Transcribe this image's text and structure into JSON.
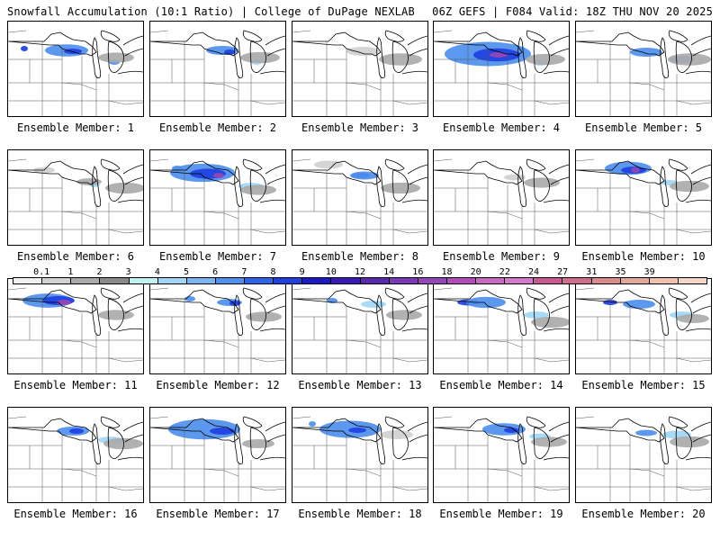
{
  "header": {
    "title_left": "Snowfall Accumulation (10:1 Ratio) | College of DuPage NEXLAB",
    "title_right": "06Z GEFS | F084 Valid: 18Z THU NOV 20 2025"
  },
  "legend": {
    "ticks": [
      "0.1",
      "1",
      "2",
      "3",
      "4",
      "5",
      "6",
      "7",
      "8",
      "9",
      "10",
      "12",
      "14",
      "16",
      "18",
      "20",
      "22",
      "24",
      "27",
      "31",
      "35",
      "39"
    ],
    "colors": [
      "#f0f0f0",
      "#d0d0d0",
      "#aaaaaa",
      "#8a8a8a",
      "#bff3f3",
      "#9fd7f5",
      "#79b6f2",
      "#4f8fee",
      "#2d64ea",
      "#1f3fe0",
      "#1a1ac8",
      "#3a1ab8",
      "#5a2aa8",
      "#7a3ab4",
      "#9646b8",
      "#b24cbc",
      "#c86ac2",
      "#d27ac8",
      "#c85a92",
      "#cf6e8c",
      "#d98c8c",
      "#e4a89a",
      "#eec2ae",
      "#f6d8c8"
    ]
  },
  "panels": [
    {
      "label": "Ensemble Member: 1",
      "snow": [
        [
          18,
          30,
          4,
          "#1f3fe0"
        ],
        [
          65,
          32,
          24,
          "#4f8fee"
        ],
        [
          72,
          33,
          10,
          "#1f3fe0"
        ],
        [
          118,
          45,
          6,
          "#4f8fee"
        ],
        [
          120,
          40,
          20,
          "#aaaaaa"
        ]
      ]
    },
    {
      "label": "Ensemble Member: 2",
      "snow": [
        [
          80,
          32,
          18,
          "#4f8fee"
        ],
        [
          88,
          34,
          6,
          "#1f3fe0"
        ],
        [
          118,
          45,
          6,
          "#9fd7f5"
        ],
        [
          122,
          40,
          22,
          "#aaaaaa"
        ]
      ]
    },
    {
      "label": "Ensemble Member: 3",
      "snow": [
        [
          78,
          33,
          18,
          "#d0d0d0"
        ],
        [
          120,
          42,
          24,
          "#aaaaaa"
        ]
      ]
    },
    {
      "label": "Ensemble Member: 4",
      "snow": [
        [
          60,
          36,
          48,
          "#4f8fee"
        ],
        [
          70,
          37,
          26,
          "#1f3fe0"
        ],
        [
          72,
          37,
          10,
          "#9646b8"
        ],
        [
          118,
          46,
          8,
          "#9fd7f5"
        ],
        [
          124,
          42,
          22,
          "#aaaaaa"
        ]
      ]
    },
    {
      "label": "Ensemble Member: 5",
      "snow": [
        [
          78,
          34,
          18,
          "#4f8fee"
        ],
        [
          118,
          42,
          14,
          "#4f8fee"
        ],
        [
          126,
          42,
          24,
          "#aaaaaa"
        ]
      ]
    },
    {
      "label": "Ensemble Member: 6",
      "snow": [
        [
          40,
          22,
          12,
          "#d0d0d0"
        ],
        [
          96,
          38,
          6,
          "#9fd7f5"
        ],
        [
          90,
          35,
          14,
          "#aaaaaa"
        ],
        [
          130,
          42,
          22,
          "#aaaaaa"
        ]
      ]
    },
    {
      "label": "Ensemble Member: 7",
      "snow": [
        [
          30,
          20,
          6,
          "#4f8fee"
        ],
        [
          58,
          25,
          36,
          "#4f8fee"
        ],
        [
          64,
          26,
          20,
          "#1f3fe0"
        ],
        [
          76,
          28,
          6,
          "#9646b8"
        ],
        [
          112,
          40,
          14,
          "#9fd7f5"
        ],
        [
          120,
          44,
          20,
          "#aaaaaa"
        ]
      ]
    },
    {
      "label": "Ensemble Member: 8",
      "snow": [
        [
          40,
          16,
          16,
          "#d0d0d0"
        ],
        [
          76,
          28,
          10,
          "#1f3fe0"
        ],
        [
          80,
          28,
          16,
          "#4f8fee"
        ],
        [
          120,
          42,
          22,
          "#aaaaaa"
        ]
      ]
    },
    {
      "label": "Ensemble Member: 9",
      "snow": [
        [
          90,
          30,
          12,
          "#d0d0d0"
        ],
        [
          120,
          36,
          20,
          "#aaaaaa"
        ]
      ]
    },
    {
      "label": "Ensemble Member: 10",
      "snow": [
        [
          58,
          20,
          26,
          "#4f8fee"
        ],
        [
          64,
          22,
          14,
          "#1f3fe0"
        ],
        [
          66,
          22,
          5,
          "#9646b8"
        ],
        [
          104,
          36,
          10,
          "#9fd7f5"
        ],
        [
          126,
          40,
          22,
          "#aaaaaa"
        ]
      ]
    },
    {
      "label": "Ensemble Member: 11",
      "snow": [
        [
          44,
          24,
          28,
          "#4f8fee"
        ],
        [
          56,
          24,
          18,
          "#1f3fe0"
        ],
        [
          62,
          26,
          8,
          "#9646b8"
        ],
        [
          120,
          40,
          20,
          "#aaaaaa"
        ]
      ]
    },
    {
      "label": "Ensemble Member: 12",
      "snow": [
        [
          44,
          22,
          6,
          "#4f8fee"
        ],
        [
          88,
          26,
          14,
          "#4f8fee"
        ],
        [
          94,
          27,
          6,
          "#1f3fe0"
        ],
        [
          118,
          42,
          10,
          "#9fd7f5"
        ],
        [
          126,
          42,
          20,
          "#aaaaaa"
        ]
      ]
    },
    {
      "label": "Ensemble Member: 13",
      "snow": [
        [
          44,
          24,
          6,
          "#4f8fee"
        ],
        [
          90,
          28,
          14,
          "#9fd7f5"
        ],
        [
          124,
          40,
          20,
          "#aaaaaa"
        ]
      ]
    },
    {
      "label": "Ensemble Member: 14",
      "snow": [
        [
          38,
          26,
          12,
          "#1f3fe0"
        ],
        [
          58,
          26,
          22,
          "#4f8fee"
        ],
        [
          114,
          40,
          14,
          "#9fd7f5"
        ],
        [
          130,
          48,
          22,
          "#aaaaaa"
        ]
      ]
    },
    {
      "label": "Ensemble Member: 15",
      "snow": [
        [
          38,
          26,
          8,
          "#1f3fe0"
        ],
        [
          70,
          28,
          18,
          "#4f8fee"
        ],
        [
          118,
          40,
          14,
          "#9fd7f5"
        ],
        [
          130,
          44,
          18,
          "#aaaaaa"
        ]
      ]
    },
    {
      "label": "Ensemble Member: 16",
      "snow": [
        [
          72,
          26,
          18,
          "#4f8fee"
        ],
        [
          76,
          26,
          8,
          "#1f3fe0"
        ],
        [
          114,
          36,
          14,
          "#9fd7f5"
        ],
        [
          128,
          40,
          22,
          "#aaaaaa"
        ]
      ]
    },
    {
      "label": "Ensemble Member: 17",
      "snow": [
        [
          28,
          22,
          6,
          "#4f8fee"
        ],
        [
          60,
          24,
          40,
          "#4f8fee"
        ],
        [
          80,
          26,
          14,
          "#1f3fe0"
        ],
        [
          120,
          40,
          18,
          "#aaaaaa"
        ]
      ]
    },
    {
      "label": "Ensemble Member: 18",
      "snow": [
        [
          22,
          18,
          4,
          "#4f8fee"
        ],
        [
          64,
          24,
          34,
          "#4f8fee"
        ],
        [
          72,
          25,
          10,
          "#1f3fe0"
        ],
        [
          116,
          30,
          18,
          "#d0d0d0"
        ]
      ]
    },
    {
      "label": "Ensemble Member: 19",
      "snow": [
        [
          78,
          24,
          24,
          "#4f8fee"
        ],
        [
          86,
          25,
          8,
          "#1f3fe0"
        ],
        [
          118,
          32,
          12,
          "#9fd7f5"
        ],
        [
          128,
          38,
          20,
          "#aaaaaa"
        ]
      ]
    },
    {
      "label": "Ensemble Member: 20",
      "snow": [
        [
          78,
          28,
          12,
          "#4f8fee"
        ],
        [
          112,
          30,
          16,
          "#9fd7f5"
        ],
        [
          126,
          38,
          22,
          "#aaaaaa"
        ]
      ]
    }
  ]
}
